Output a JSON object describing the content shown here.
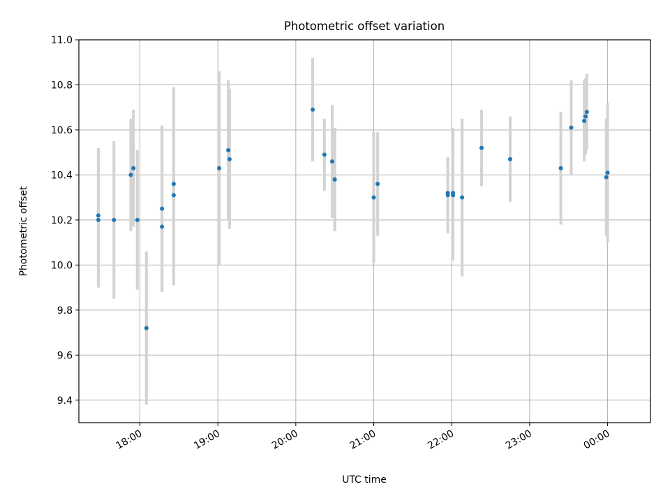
{
  "chart_data": {
    "type": "scatter",
    "title": "Photometric offset variation",
    "xlabel": "UTC time",
    "ylabel": "Photometric offset",
    "x_axis": {
      "ticks": [
        "18:00",
        "19:00",
        "20:00",
        "21:00",
        "22:00",
        "23:00",
        "00:00"
      ],
      "range": [
        "17:13",
        "00:33"
      ]
    },
    "y_axis": {
      "ticks": [
        "9.4",
        "9.6",
        "9.8",
        "10.0",
        "10.2",
        "10.4",
        "10.6",
        "10.8",
        "11.0"
      ],
      "range": [
        9.3,
        11.0
      ]
    },
    "grid": true,
    "colors": {
      "points": "#1f77b4",
      "errorbars": "#d3d3d3",
      "grid": "#b0b0b0"
    },
    "points": [
      {
        "x": "17:28",
        "y": 10.22,
        "yerr": 0.3
      },
      {
        "x": "17:28",
        "y": 10.2,
        "yerr": 0.3
      },
      {
        "x": "17:40",
        "y": 10.2,
        "yerr": 0.35
      },
      {
        "x": "17:53",
        "y": 10.4,
        "yerr": 0.25
      },
      {
        "x": "17:55",
        "y": 10.43,
        "yerr": 0.26
      },
      {
        "x": "17:58",
        "y": 10.2,
        "yerr": 0.31
      },
      {
        "x": "18:05",
        "y": 9.72,
        "yerr": 0.34
      },
      {
        "x": "18:17",
        "y": 10.25,
        "yerr": 0.37
      },
      {
        "x": "18:17",
        "y": 10.17,
        "yerr": 0.29
      },
      {
        "x": "18:26",
        "y": 10.36,
        "yerr": 0.43
      },
      {
        "x": "18:26",
        "y": 10.31,
        "yerr": 0.4
      },
      {
        "x": "19:01",
        "y": 10.43,
        "yerr": 0.43
      },
      {
        "x": "19:08",
        "y": 10.51,
        "yerr": 0.31
      },
      {
        "x": "19:09",
        "y": 10.47,
        "yerr": 0.31
      },
      {
        "x": "20:13",
        "y": 10.69,
        "yerr": 0.23
      },
      {
        "x": "20:22",
        "y": 10.49,
        "yerr": 0.16
      },
      {
        "x": "20:28",
        "y": 10.46,
        "yerr": 0.25
      },
      {
        "x": "20:30",
        "y": 10.38,
        "yerr": 0.23
      },
      {
        "x": "21:00",
        "y": 10.3,
        "yerr": 0.29
      },
      {
        "x": "21:03",
        "y": 10.36,
        "yerr": 0.23
      },
      {
        "x": "21:57",
        "y": 10.32,
        "yerr": 0.16
      },
      {
        "x": "21:57",
        "y": 10.31,
        "yerr": 0.17
      },
      {
        "x": "22:01",
        "y": 10.32,
        "yerr": 0.29
      },
      {
        "x": "22:01",
        "y": 10.31,
        "yerr": 0.29
      },
      {
        "x": "22:08",
        "y": 10.3,
        "yerr": 0.35
      },
      {
        "x": "22:23",
        "y": 10.52,
        "yerr": 0.17
      },
      {
        "x": "22:45",
        "y": 10.47,
        "yerr": 0.19
      },
      {
        "x": "23:24",
        "y": 10.43,
        "yerr": 0.25
      },
      {
        "x": "23:32",
        "y": 10.61,
        "yerr": 0.21
      },
      {
        "x": "23:42",
        "y": 10.64,
        "yerr": 0.18
      },
      {
        "x": "23:43",
        "y": 10.66,
        "yerr": 0.17
      },
      {
        "x": "23:44",
        "y": 10.68,
        "yerr": 0.17
      },
      {
        "x": "23:59",
        "y": 10.39,
        "yerr": 0.26
      },
      {
        "x": "00:00",
        "y": 10.41,
        "yerr": 0.31
      }
    ]
  }
}
